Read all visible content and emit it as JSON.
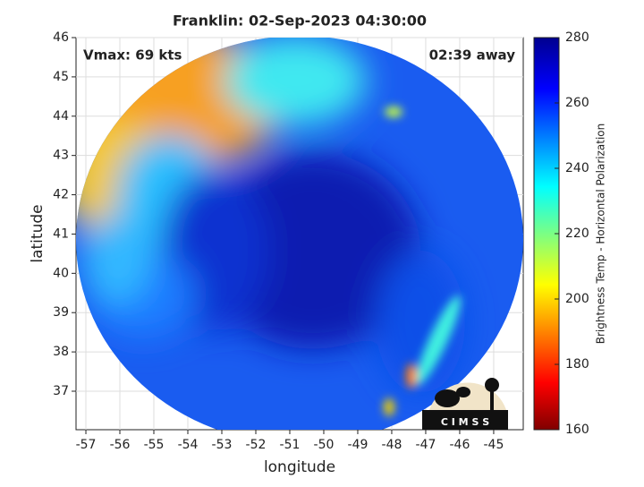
{
  "chart_data": {
    "type": "map",
    "title": "Franklin: 02-Sep-2023 04:30:00",
    "xlabel": "longitude",
    "ylabel": "latitude",
    "xlim": [
      -57.29,
      -44.13
    ],
    "ylim": [
      36.02,
      46
    ],
    "xticks": [
      -57,
      -56,
      -55,
      -54,
      -53,
      -52,
      -51,
      -50,
      -49,
      -48,
      -47,
      -46,
      -45
    ],
    "yticks": [
      37,
      38,
      39,
      40,
      41,
      42,
      43,
      44,
      45,
      46
    ],
    "grid": true,
    "annotations": [
      "Vmax: 69 kts",
      "02:39 away"
    ],
    "logo_text": "C I M S S",
    "colorbar": {
      "label": "Brightness Temp - Horizontal Polarization",
      "lim": [
        160,
        280
      ],
      "ticks": [
        160,
        180,
        200,
        220,
        240,
        260,
        280
      ],
      "colormap": "jet"
    }
  }
}
